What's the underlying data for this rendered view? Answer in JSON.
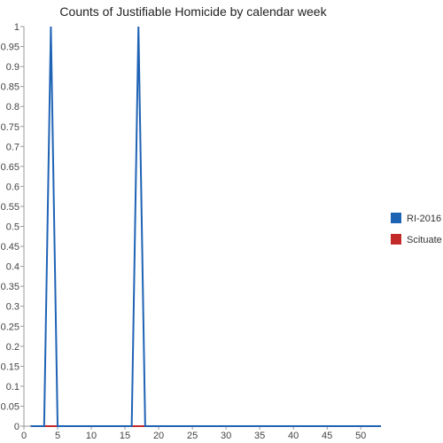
{
  "chart_data": {
    "type": "line",
    "title": "Counts of Justifiable Homicide by calendar week",
    "xlabel": "",
    "ylabel": "",
    "xlim": [
      0,
      53
    ],
    "ylim": [
      0,
      1
    ],
    "x_ticks": [
      0,
      5,
      10,
      15,
      20,
      25,
      30,
      35,
      40,
      45,
      50
    ],
    "y_ticks": [
      0,
      0.05,
      0.1,
      0.15,
      0.2,
      0.25,
      0.3,
      0.35,
      0.4,
      0.45,
      0.5,
      0.55,
      0.6,
      0.65,
      0.7,
      0.75,
      0.8,
      0.85,
      0.9,
      0.95,
      1
    ],
    "x_tick_labels": [
      "0",
      "5",
      "10",
      "15",
      "20",
      "25",
      "30",
      "35",
      "40",
      "45",
      "50"
    ],
    "y_tick_labels": [
      "0",
      "0.05",
      "0.1",
      "0.15",
      "0.2",
      "0.25",
      "0.3",
      "0.35",
      "0.4",
      "0.45",
      "0.5",
      "0.55",
      "0.6",
      "0.65",
      "0.7",
      "0.75",
      "0.8",
      "0.85",
      "0.9",
      "0.95",
      "1"
    ],
    "grid": false,
    "legend_position": "right",
    "series": [
      {
        "name": "RI-2016",
        "color": "#1f63b5",
        "x": [
          1,
          2,
          3,
          4,
          5,
          6,
          7,
          8,
          9,
          10,
          11,
          12,
          13,
          14,
          15,
          16,
          17,
          18,
          19,
          20,
          21,
          22,
          23,
          24,
          25,
          26,
          27,
          28,
          29,
          30,
          31,
          32,
          33,
          34,
          35,
          36,
          37,
          38,
          39,
          40,
          41,
          42,
          43,
          44,
          45,
          46,
          47,
          48,
          49,
          50,
          51,
          52,
          53
        ],
        "y": [
          0,
          0,
          0,
          1,
          0,
          0,
          0,
          0,
          0,
          0,
          0,
          0,
          0,
          0,
          0,
          0,
          1,
          0,
          0,
          0,
          0,
          0,
          0,
          0,
          0,
          0,
          0,
          0,
          0,
          0,
          0,
          0,
          0,
          0,
          0,
          0,
          0,
          0,
          0,
          0,
          0,
          0,
          0,
          0,
          0,
          0,
          0,
          0,
          0,
          0,
          0,
          0,
          0
        ]
      },
      {
        "name": "Scituate",
        "color": "#c42a2a",
        "x": [
          1,
          2,
          3,
          4,
          5,
          6,
          7,
          8,
          9,
          10,
          11,
          12,
          13,
          14,
          15,
          16,
          17,
          18,
          19,
          20,
          21,
          22,
          23,
          24,
          25,
          26,
          27,
          28,
          29,
          30,
          31,
          32,
          33,
          34,
          35,
          36,
          37,
          38,
          39,
          40,
          41,
          42,
          43,
          44,
          45,
          46,
          47,
          48,
          49,
          50,
          51,
          52,
          53
        ],
        "y": [
          0,
          0,
          0,
          0,
          0,
          0,
          0,
          0,
          0,
          0,
          0,
          0,
          0,
          0,
          0,
          0,
          0,
          0,
          0,
          0,
          0,
          0,
          0,
          0,
          0,
          0,
          0,
          0,
          0,
          0,
          0,
          0,
          0,
          0,
          0,
          0,
          0,
          0,
          0,
          0,
          0,
          0,
          0,
          0,
          0,
          0,
          0,
          0,
          0,
          0,
          0,
          0,
          0
        ]
      }
    ]
  }
}
